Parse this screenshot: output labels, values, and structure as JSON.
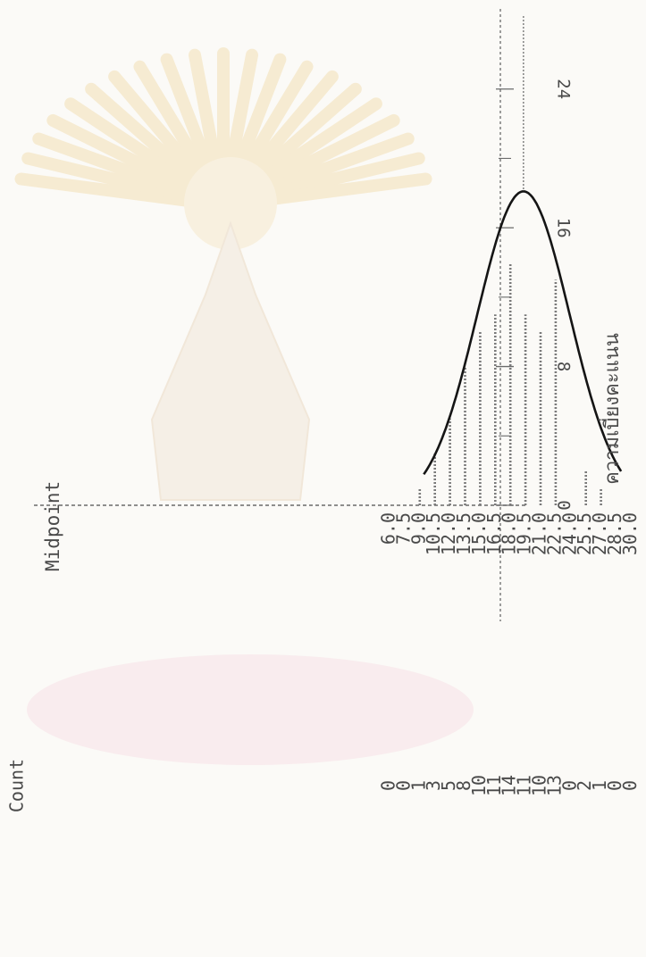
{
  "chart_data": {
    "type": "bar",
    "orientation": "horizontal",
    "category_header": "Midpoint",
    "count_header": "Count",
    "categories": [
      "6.0",
      "7.5",
      "9.0",
      "10.5",
      "12.0",
      "13.5",
      "15.0",
      "16.5",
      "18.0",
      "19.5",
      "21.0",
      "22.5",
      "24.0",
      "25.5",
      "27.0",
      "28.5",
      "30.0"
    ],
    "values": [
      0,
      0,
      1,
      3,
      5,
      8,
      10,
      11,
      14,
      11,
      10,
      13,
      0,
      2,
      1,
      0,
      0
    ],
    "scale_ticks": [
      {
        "value": 0,
        "label": "0"
      },
      {
        "value": 8,
        "label": "8"
      },
      {
        "value": 16,
        "label": "16"
      },
      {
        "value": 24,
        "label": "24"
      }
    ],
    "xlim": [
      0,
      28
    ],
    "xlabel": "ความเบี่ยงคะแนน",
    "normal_curve": {
      "mean": 19.3,
      "sd": 4.6,
      "peak": 18.1
    },
    "colors": {
      "bar": "#7a7a7a",
      "curve": "#151515",
      "axis": "#6a6a6a",
      "watermark": "#f1d9a6"
    }
  }
}
